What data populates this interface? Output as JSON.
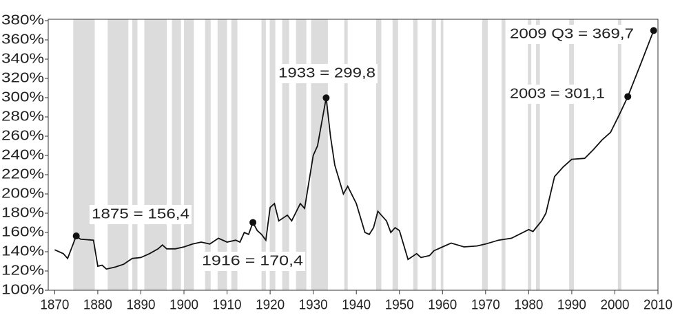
{
  "chart_data": {
    "type": "line",
    "x": [
      1870,
      1872,
      1873,
      1875,
      1876,
      1879,
      1880,
      1881,
      1882,
      1884,
      1886,
      1888,
      1890,
      1892,
      1894,
      1895,
      1896,
      1898,
      1900,
      1902,
      1904,
      1906,
      1908,
      1910,
      1912,
      1913,
      1914,
      1915,
      1916,
      1917,
      1918,
      1919,
      1920,
      1921,
      1922,
      1924,
      1925,
      1927,
      1928,
      1930,
      1931,
      1932,
      1933,
      1934,
      1935,
      1937,
      1938,
      1940,
      1942,
      1943,
      1944,
      1945,
      1947,
      1948,
      1949,
      1950,
      1952,
      1954,
      1955,
      1957,
      1958,
      1960,
      1962,
      1965,
      1968,
      1970,
      1973,
      1976,
      1980,
      1981,
      1983,
      1984,
      1986,
      1988,
      1990,
      1993,
      1995,
      1997,
      1999,
      2001,
      2003,
      2006,
      2009
    ],
    "series": [
      {
        "color": "#111111",
        "values": [
          142,
          138,
          133,
          156.4,
          153,
          152,
          125,
          126,
          122,
          124,
          127,
          133,
          134,
          138,
          143,
          147,
          143,
          143,
          145,
          148,
          150,
          148,
          154,
          150,
          152,
          150,
          160,
          158,
          170.4,
          162,
          158,
          152,
          186,
          190,
          172,
          178,
          172,
          190,
          185,
          240,
          250,
          275,
          299.8,
          260,
          230,
          200,
          208,
          190,
          160,
          158,
          165,
          182,
          172,
          160,
          165,
          162,
          132,
          138,
          134,
          136,
          141,
          145,
          149,
          145,
          146,
          148,
          152,
          154,
          163,
          161,
          172,
          180,
          218,
          228,
          236,
          237,
          246,
          256,
          264,
          282,
          301.1,
          335,
          369.7
        ]
      }
    ],
    "annotations": [
      {
        "x": 1875,
        "y": 156.4,
        "label": "1875 = 156,4"
      },
      {
        "x": 1916,
        "y": 170.4,
        "label": "1916 = 170,4"
      },
      {
        "x": 1933,
        "y": 299.8,
        "label": "1933 = 299,8"
      },
      {
        "x": 2003,
        "y": 301.1,
        "label": "2003 = 301,1"
      },
      {
        "x": 2009,
        "y": 369.7,
        "label": "2009 Q3 = 369,7"
      }
    ],
    "shaded_periods": [
      [
        1874.3,
        1879.3
      ],
      [
        1882.3,
        1887.1
      ],
      [
        1888,
        1889.2
      ],
      [
        1890.8,
        1896
      ],
      [
        1897.2,
        1899.3
      ],
      [
        1900,
        1902.3
      ],
      [
        1904.9,
        1906.2
      ],
      [
        1907.8,
        1910
      ],
      [
        1911,
        1912.4
      ],
      [
        1918,
        1919
      ],
      [
        1919.9,
        1921.2
      ],
      [
        1922.8,
        1924.4
      ],
      [
        1926,
        1928.4
      ],
      [
        1929.5,
        1933.4
      ],
      [
        1937.2,
        1938
      ],
      [
        1944.6,
        1945.8
      ],
      [
        1948.4,
        1949.7
      ],
      [
        1953.2,
        1954.2
      ],
      [
        1957.5,
        1958.5
      ],
      [
        1959.6,
        1960.2
      ],
      [
        1969.2,
        1970.5
      ],
      [
        1973.7,
        1974.6
      ],
      [
        1979.8,
        1980.6
      ],
      [
        1981.7,
        1982.6
      ],
      [
        1989.4,
        1990.5
      ],
      [
        2000.7,
        2001.5
      ]
    ],
    "shade_color": "#dcdcdc",
    "xlim": [
      1868.5,
      2010
    ],
    "xticks": [
      1870,
      1880,
      1890,
      1900,
      1910,
      1920,
      1930,
      1940,
      1950,
      1960,
      1970,
      1980,
      1990,
      2000,
      2010
    ],
    "ylim": [
      100,
      380
    ],
    "yticks": [
      {
        "value": 100,
        "label": "100%"
      },
      {
        "value": 120,
        "label": "120%"
      },
      {
        "value": 140,
        "label": "140%"
      },
      {
        "value": 160,
        "label": "160%"
      },
      {
        "value": 180,
        "label": "180%"
      },
      {
        "value": 200,
        "label": "200%"
      },
      {
        "value": 220,
        "label": "220%"
      },
      {
        "value": 240,
        "label": "240%"
      },
      {
        "value": 260,
        "label": "260%"
      },
      {
        "value": 280,
        "label": "280%"
      },
      {
        "value": 300,
        "label": "300%"
      },
      {
        "value": 320,
        "label": "320%"
      },
      {
        "value": 340,
        "label": "340%"
      },
      {
        "value": 360,
        "label": "360%"
      },
      {
        "value": 380,
        "label": "380%"
      }
    ]
  }
}
